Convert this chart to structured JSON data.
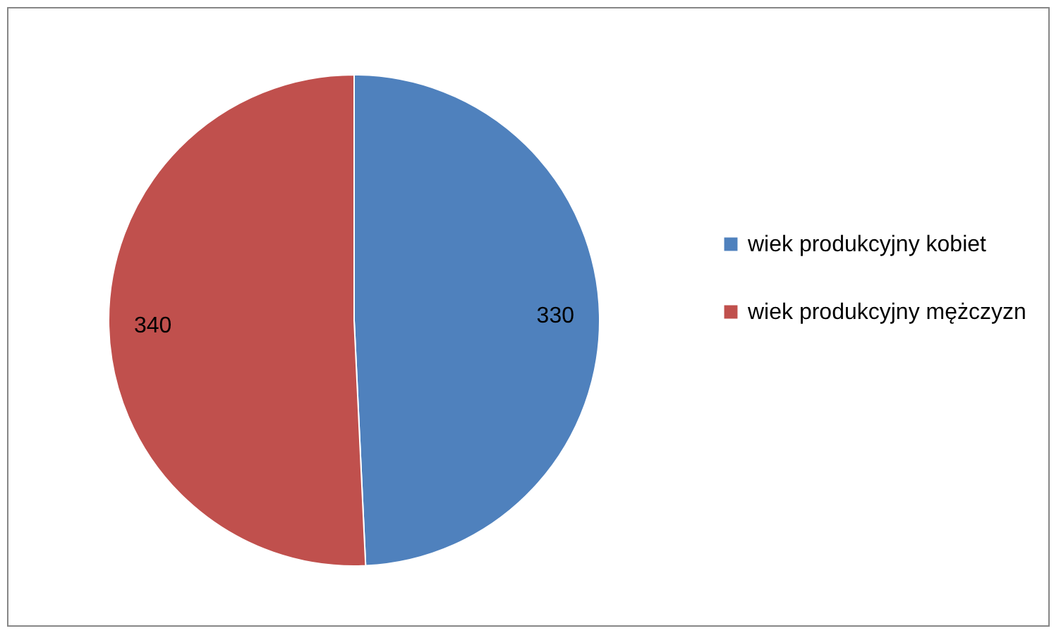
{
  "chart_data": {
    "type": "pie",
    "categories": [
      "wiek produkcyjny kobiet",
      "wiek produkcyjny mężczyzn"
    ],
    "values": [
      330,
      340
    ],
    "colors": [
      "#4f81bd",
      "#c0504d"
    ],
    "data_labels": true,
    "legend": "right"
  }
}
